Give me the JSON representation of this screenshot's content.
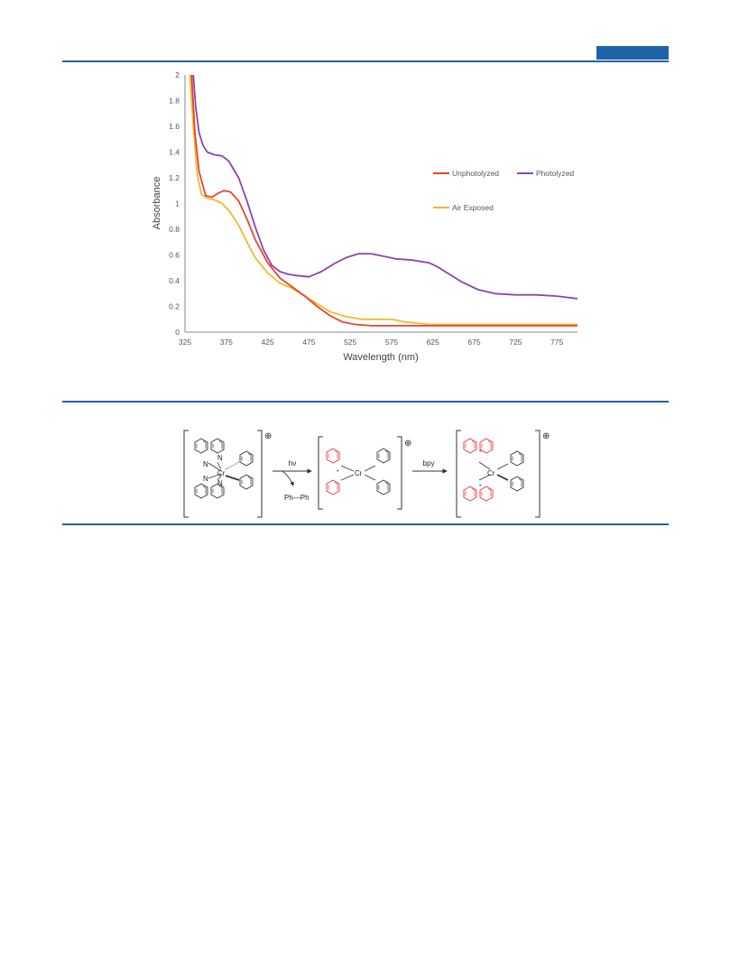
{
  "colors": {
    "rule": "#1e63a8",
    "unphotolyzed": "#e8452c",
    "photolyzed": "#8e44ad",
    "air_exposed": "#f5b82e",
    "highlight": "#e8303a"
  },
  "chart_data": {
    "type": "line",
    "xlabel": "Wavelength (nm)",
    "ylabel": "Absorbance",
    "xlim": [
      325,
      800
    ],
    "ylim": [
      0,
      2
    ],
    "xticks": [
      "325",
      "375",
      "425",
      "475",
      "525",
      "575",
      "625",
      "675",
      "725",
      "775"
    ],
    "yticks": [
      "0",
      "0.2",
      "0.4",
      "0.6",
      "0.8",
      "1",
      "1.2",
      "1.4",
      "1.6",
      "1.8",
      "2"
    ],
    "grid": false,
    "legend": "right",
    "series": [
      {
        "name": "Unphotolyzed",
        "color": "#e8452c",
        "x": [
          333,
          337,
          342,
          350,
          358,
          365,
          372,
          380,
          390,
          400,
          410,
          425,
          440,
          455,
          470,
          485,
          500,
          515,
          530,
          550,
          575,
          600,
          650,
          700,
          750,
          800
        ],
        "y": [
          2.0,
          1.55,
          1.25,
          1.06,
          1.05,
          1.08,
          1.1,
          1.09,
          1.02,
          0.88,
          0.72,
          0.54,
          0.42,
          0.35,
          0.28,
          0.2,
          0.13,
          0.08,
          0.06,
          0.05,
          0.05,
          0.05,
          0.05,
          0.05,
          0.05,
          0.05
        ]
      },
      {
        "name": "Photolyzed",
        "color": "#8e44ad",
        "x": [
          335,
          338,
          342,
          347,
          352,
          360,
          370,
          378,
          390,
          400,
          410,
          420,
          430,
          440,
          450,
          460,
          475,
          490,
          505,
          520,
          535,
          550,
          565,
          580,
          600,
          620,
          630,
          645,
          660,
          680,
          700,
          725,
          750,
          775,
          800
        ],
        "y": [
          2.0,
          1.75,
          1.55,
          1.45,
          1.4,
          1.38,
          1.37,
          1.33,
          1.2,
          1.02,
          0.82,
          0.64,
          0.52,
          0.47,
          0.45,
          0.44,
          0.43,
          0.47,
          0.53,
          0.58,
          0.61,
          0.61,
          0.59,
          0.57,
          0.56,
          0.54,
          0.51,
          0.45,
          0.39,
          0.33,
          0.3,
          0.29,
          0.29,
          0.28,
          0.26
        ]
      },
      {
        "name": "Air Exposed",
        "color": "#f5b82e",
        "x": [
          331,
          335,
          340,
          345,
          352,
          360,
          370,
          380,
          390,
          400,
          410,
          425,
          440,
          455,
          470,
          485,
          500,
          520,
          540,
          560,
          575,
          590,
          620,
          650,
          700,
          750,
          800
        ],
        "y": [
          2.0,
          1.6,
          1.22,
          1.07,
          1.04,
          1.03,
          1.0,
          0.93,
          0.83,
          0.7,
          0.58,
          0.46,
          0.38,
          0.34,
          0.28,
          0.22,
          0.16,
          0.12,
          0.1,
          0.1,
          0.1,
          0.08,
          0.06,
          0.06,
          0.06,
          0.06,
          0.06
        ]
      }
    ]
  },
  "scheme": {
    "reagent1": "hν",
    "byproduct": "Ph—Ph",
    "reagent2": "bpy",
    "charge": "⊕",
    "metal": "Cr",
    "n": "N",
    "dot": "•"
  }
}
